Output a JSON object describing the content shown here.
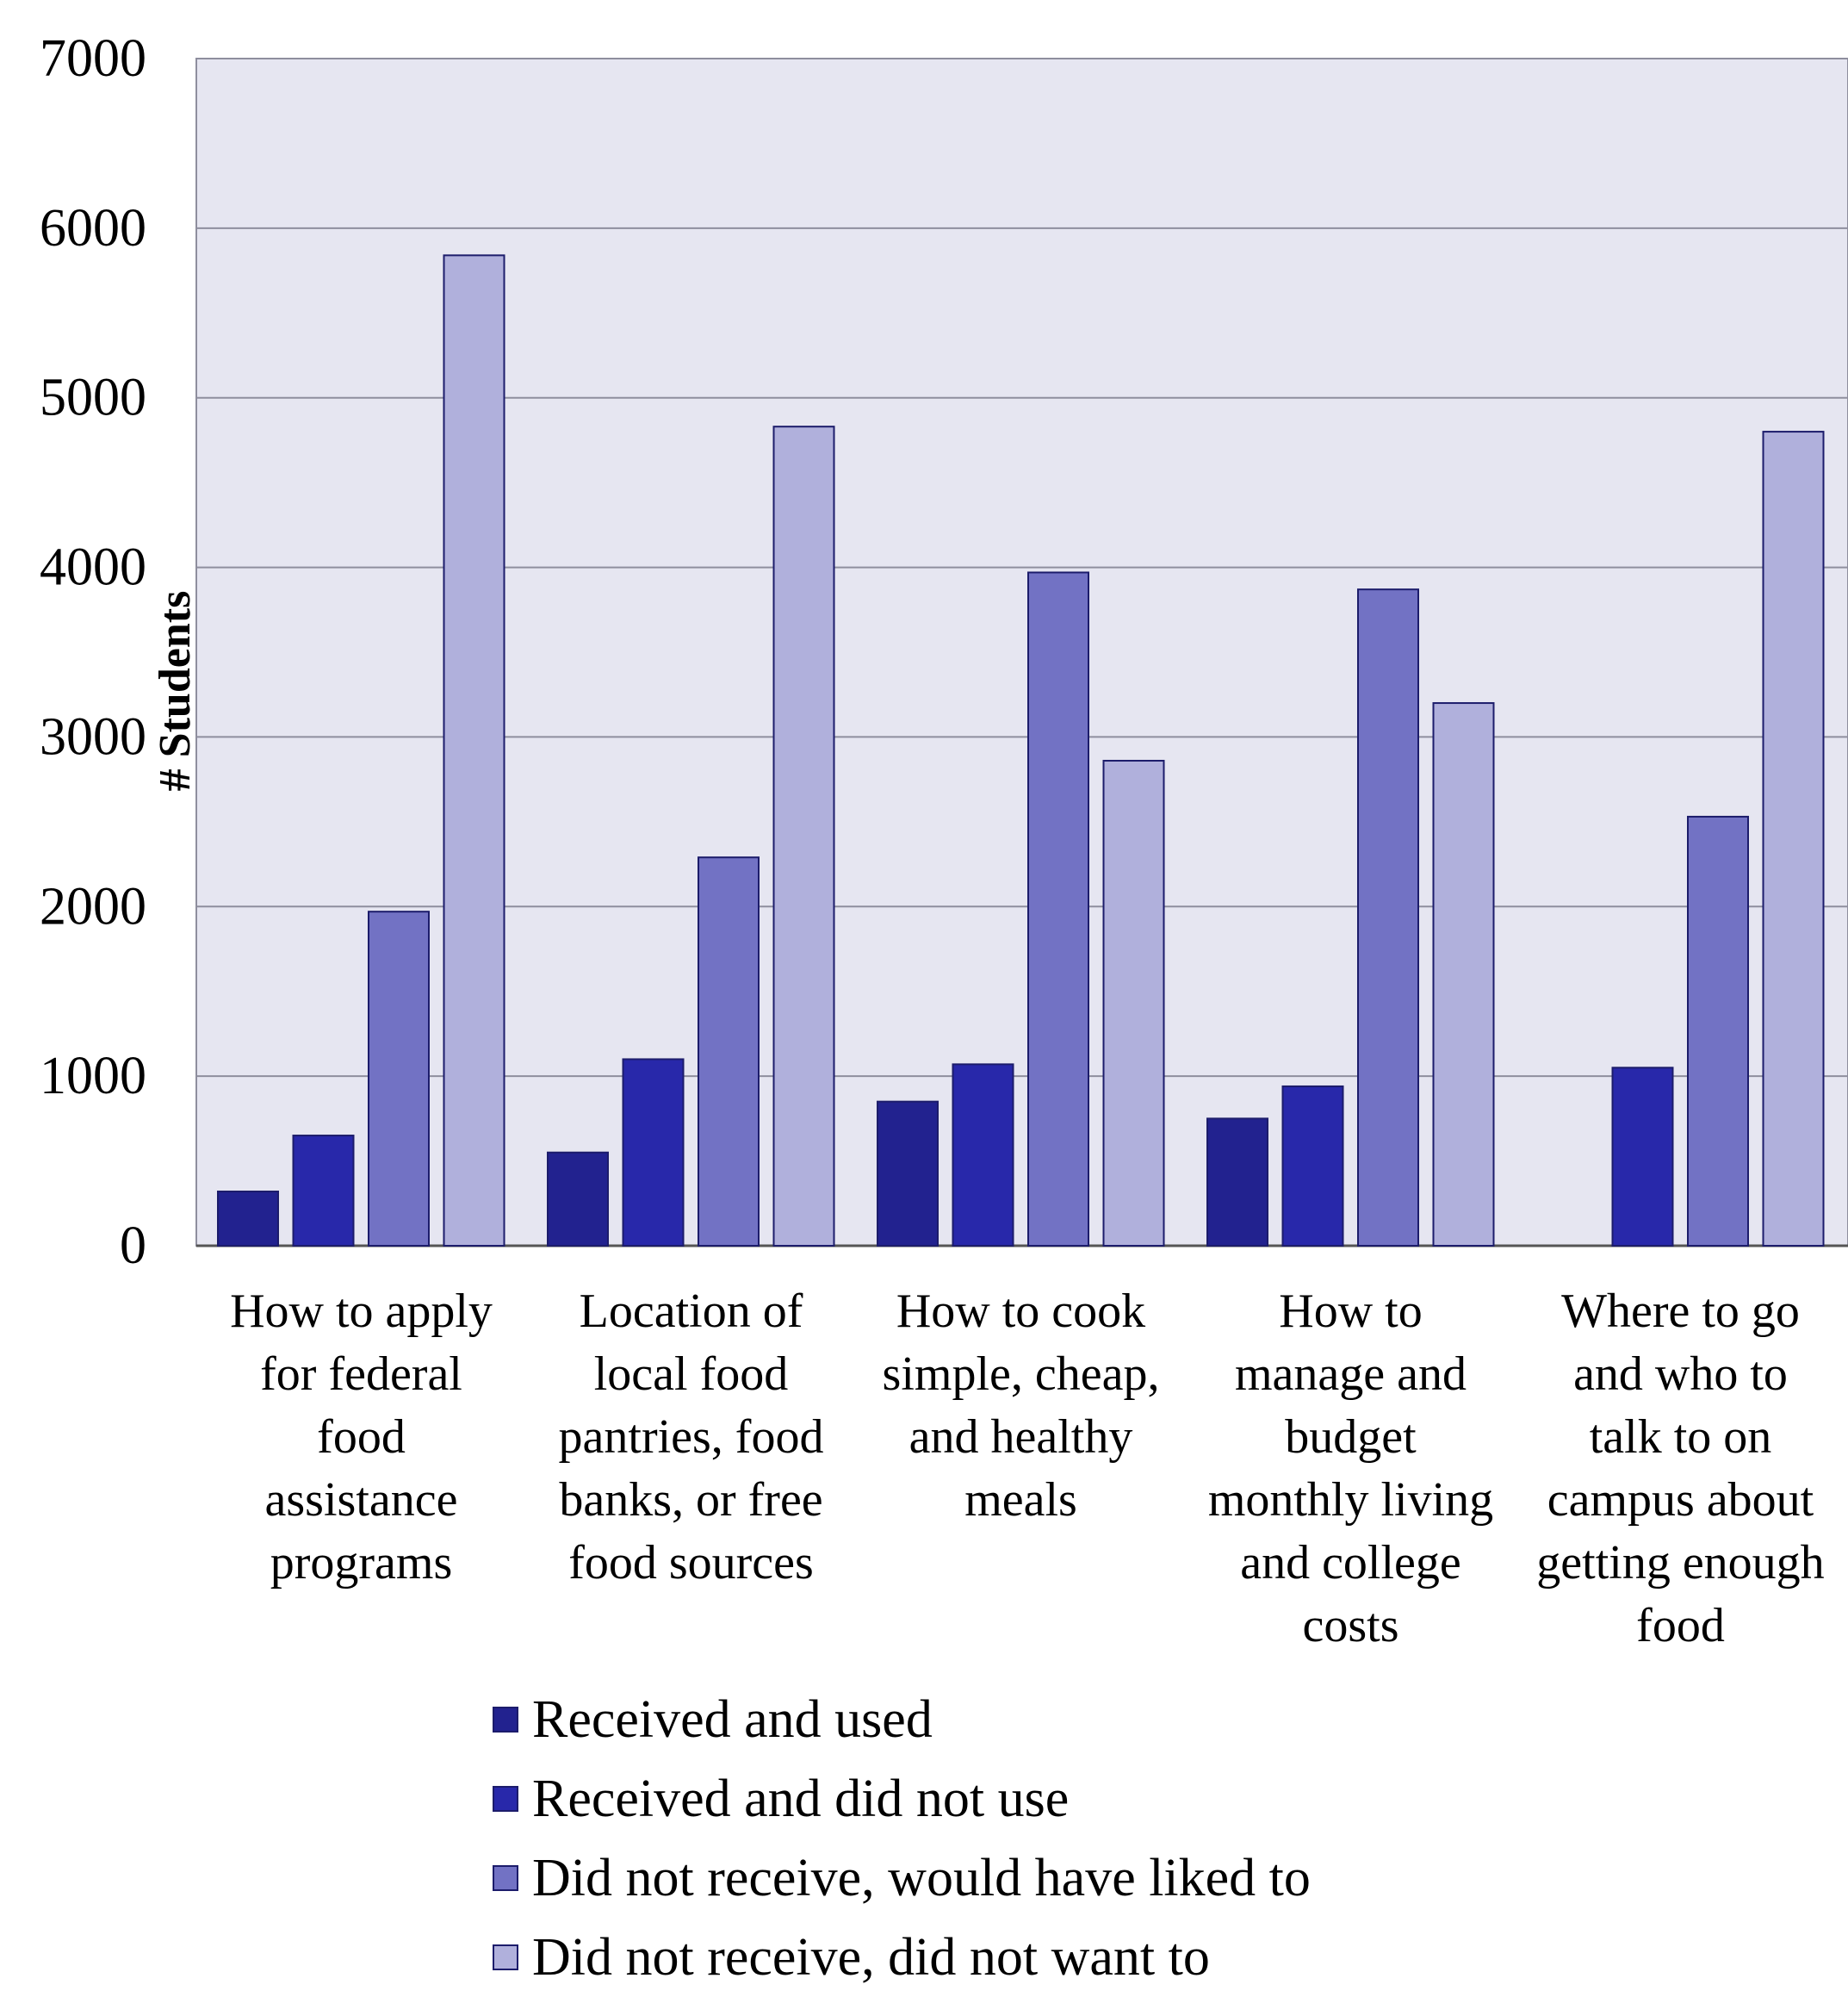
{
  "chart_data": {
    "type": "bar",
    "title": "",
    "xlabel": "",
    "ylabel": "# Students",
    "ylim": [
      0,
      7000
    ],
    "yticks": [
      0,
      1000,
      2000,
      3000,
      4000,
      5000,
      6000,
      7000
    ],
    "grid": true,
    "legend_position": "bottom",
    "categories": [
      [
        "How to apply",
        "for federal",
        "food",
        "assistance",
        "programs"
      ],
      [
        "Location of",
        "local food",
        "pantries, food",
        "banks, or free",
        "food sources"
      ],
      [
        "How to cook",
        "simple, cheap,",
        "and healthy",
        "meals"
      ],
      [
        "How to",
        "manage and",
        "budget",
        "monthly living",
        "and college",
        "costs"
      ],
      [
        "Where to go",
        "and who to",
        "talk to on",
        "campus about",
        "getting enough",
        "food"
      ]
    ],
    "series": [
      {
        "name": "Received and used",
        "color": "#22228f",
        "values": [
          320,
          550,
          850,
          750,
          0
        ]
      },
      {
        "name": "Received and did not use",
        "color": "#2828aa",
        "values": [
          650,
          1100,
          1070,
          940,
          1050
        ]
      },
      {
        "name": "Did not receive, would have liked to",
        "color": "#7272c4",
        "values": [
          1970,
          2290,
          3970,
          3870,
          2530
        ]
      },
      {
        "name": "Did not receive, did not want to",
        "color": "#b0b0dc",
        "values": [
          5840,
          4830,
          2860,
          3200,
          4800
        ]
      }
    ],
    "colors": {
      "plot_background": "#e6e6f1",
      "gridline": "#8e8e9e",
      "bar_edge": "#1c1c6b"
    }
  }
}
